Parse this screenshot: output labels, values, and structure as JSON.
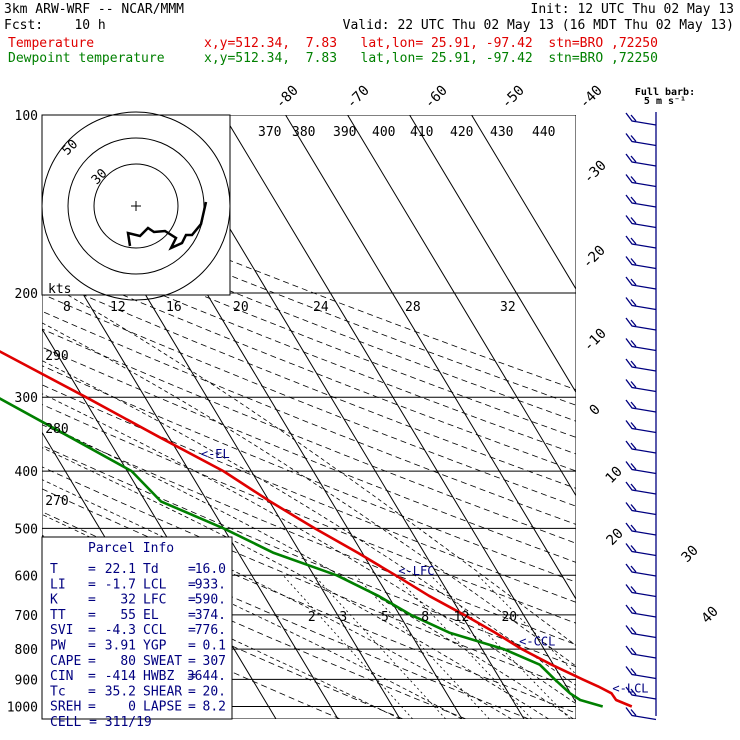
{
  "header": {
    "title": "3km ARW-WRF -- NCAR/MMM",
    "init": "Init: 12 UTC Thu 02 May 13",
    "fcst": "Fcst:    10 h",
    "valid": "Valid: 22 UTC Thu 02 May 13 (16 MDT Thu 02 May 13)",
    "temp_label": "Temperature",
    "temp_info": "x,y=512.34,  7.83   lat,lon= 25.91, -97.42  stn=BRO ,72250",
    "dew_label": "Dewpoint temperature",
    "dew_info": "x,y=512.34,  7.83   lat,lon= 25.91, -97.42  stn=BRO ,72250"
  },
  "colors": {
    "temperature": "#e00000",
    "dewpoint": "#008000",
    "parcel": "#000080",
    "barbs": "#000080"
  },
  "barb_key": {
    "line1": "Full barb:",
    "line2": "5 m s⁻¹"
  },
  "chart_data": {
    "type": "line",
    "diagram": "skew-T log-p",
    "pressure_levels": [
      100,
      200,
      300,
      400,
      500,
      600,
      700,
      800,
      900,
      1000
    ],
    "isotherm_labels": [
      "-80",
      "-70",
      "-60",
      "-50",
      "-40",
      "-30",
      "-20",
      "-10",
      "0",
      "10",
      "20",
      "30",
      "40"
    ],
    "theta_labels": [
      "290",
      "280",
      "270"
    ],
    "mixing_ratio_labels": [
      "2",
      "3",
      "5",
      "8",
      "12",
      "20"
    ],
    "series": [
      {
        "name": "Temperature",
        "points": [
          {
            "p": 1000,
            "t": 28.6
          },
          {
            "p": 975,
            "t": 26.7
          },
          {
            "p": 950,
            "t": 26.6
          },
          {
            "p": 925,
            "t": 25.1
          },
          {
            "p": 900,
            "t": 23.3
          },
          {
            "p": 850,
            "t": 19.7
          },
          {
            "p": 800,
            "t": 16.4
          },
          {
            "p": 750,
            "t": 13.7
          },
          {
            "p": 700,
            "t": 10.4
          },
          {
            "p": 650,
            "t": 6.6
          },
          {
            "p": 600,
            "t": 3.2
          },
          {
            "p": 550,
            "t": -0.7
          },
          {
            "p": 500,
            "t": -5.3
          },
          {
            "p": 450,
            "t": -9.9
          },
          {
            "p": 400,
            "t": -14.5
          },
          {
            "p": 350,
            "t": -21.6
          },
          {
            "p": 300,
            "t": -29.5
          },
          {
            "p": 250,
            "t": -39.2
          },
          {
            "p": 220,
            "t": -46.8
          },
          {
            "p": 200,
            "t": -51.4
          },
          {
            "p": 180,
            "t": -56.1
          },
          {
            "p": 160,
            "t": -60.4
          },
          {
            "p": 140,
            "t": -66.4
          },
          {
            "p": 120,
            "t": -71.8
          },
          {
            "p": 100,
            "t": -79.1
          }
        ]
      },
      {
        "name": "Dewpoint temperature",
        "points": [
          {
            "p": 1000,
            "t": 23.9
          },
          {
            "p": 975,
            "t": 20.9
          },
          {
            "p": 950,
            "t": 19.9
          },
          {
            "p": 900,
            "t": 18.8
          },
          {
            "p": 850,
            "t": 17.8
          },
          {
            "p": 800,
            "t": 13.5
          },
          {
            "p": 750,
            "t": 6.3
          },
          {
            "p": 700,
            "t": 1.8
          },
          {
            "p": 650,
            "t": -1.6
          },
          {
            "p": 600,
            "t": -6.3
          },
          {
            "p": 550,
            "t": -14.3
          },
          {
            "p": 500,
            "t": -20.0
          },
          {
            "p": 450,
            "t": -27.5
          },
          {
            "p": 400,
            "t": -29.3
          },
          {
            "p": 350,
            "t": -36.0
          },
          {
            "p": 300,
            "t": -43.8
          },
          {
            "p": 250,
            "t": -52.8
          },
          {
            "p": 220,
            "t": -64.0
          },
          {
            "p": 200,
            "t": -78.0
          },
          {
            "p": 180,
            "t": -86.0
          },
          {
            "p": 160,
            "t": -83.0
          },
          {
            "p": 140,
            "t": -88.0
          },
          {
            "p": 120,
            "t": -95.0
          },
          {
            "p": 100,
            "t": -104.0
          }
        ]
      }
    ],
    "parcel_levels": [
      {
        "label": "<-EL",
        "p": 374
      },
      {
        "label": "<-LFC",
        "p": 590
      },
      {
        "label": "<-CCL",
        "p": 776
      },
      {
        "label": "<-LCL",
        "p": 933
      }
    ],
    "hodograph": {
      "units_label": "kts",
      "ring_labels": [
        "50",
        "30"
      ],
      "speed_labels": [
        "8",
        "12",
        "16",
        "20",
        "24",
        "28",
        "32"
      ],
      "theta_e_labels": [
        "370",
        "380",
        "390",
        "400",
        "410",
        "420",
        "430",
        "440"
      ]
    }
  },
  "parcel_info": {
    "title": "Parcel Info",
    "rows": [
      {
        "l1": "T",
        "v1": "22.1",
        "l2": "Td",
        "v2": "16.0"
      },
      {
        "l1": "LI",
        "v1": "-1.7",
        "l2": "LCL",
        "v2": "933."
      },
      {
        "l1": "K",
        "v1": "32",
        "l2": "LFC",
        "v2": "590."
      },
      {
        "l1": "TT",
        "v1": "55",
        "l2": "EL",
        "v2": "374."
      },
      {
        "l1": "SVI",
        "v1": "-4.3",
        "l2": "CCL",
        "v2": "776."
      },
      {
        "l1": "PW",
        "v1": "3.91",
        "l2": "YGP",
        "v2": "0.1"
      },
      {
        "l1": "CAPE",
        "v1": "80",
        "l2": "SWEAT",
        "v2": "307"
      },
      {
        "l1": "CIN",
        "v1": "-414",
        "l2": "HWBZ",
        "v2": "3644."
      },
      {
        "l1": "Tc",
        "v1": "35.2",
        "l2": "SHEAR",
        "v2": "20."
      },
      {
        "l1": "SREH",
        "v1": "0",
        "l2": "LAPSE",
        "v2": "8.2"
      }
    ],
    "cell": "CELL = 311/19"
  }
}
